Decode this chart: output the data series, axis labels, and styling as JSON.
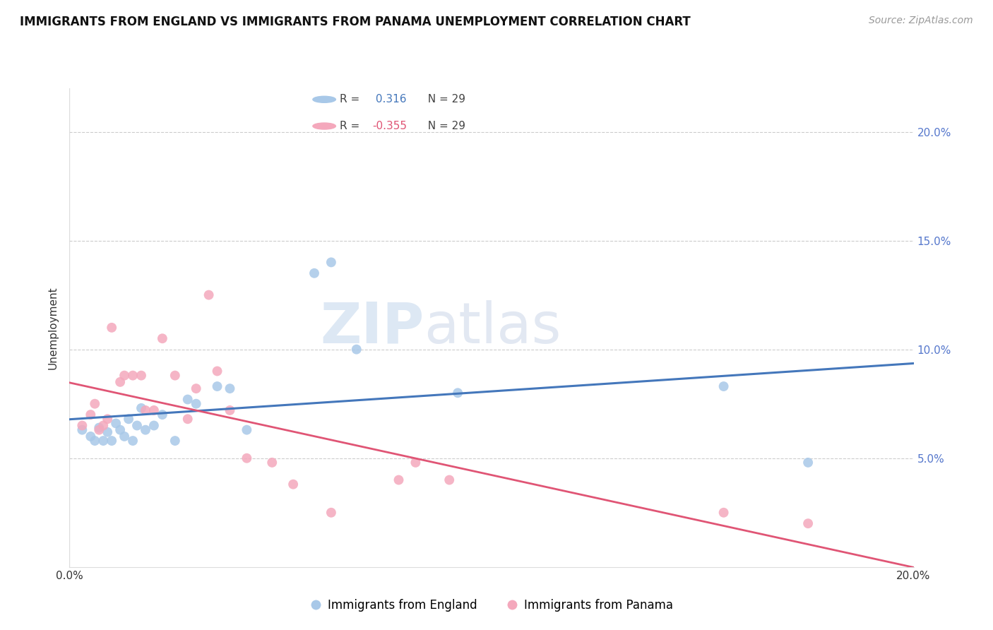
{
  "title": "IMMIGRANTS FROM ENGLAND VS IMMIGRANTS FROM PANAMA UNEMPLOYMENT CORRELATION CHART",
  "source": "Source: ZipAtlas.com",
  "ylabel": "Unemployment",
  "r_england": 0.316,
  "r_panama": -0.355,
  "n_england": 29,
  "n_panama": 29,
  "xlim": [
    0.0,
    0.2
  ],
  "ylim": [
    0.0,
    0.22
  ],
  "yticks": [
    0.05,
    0.1,
    0.15,
    0.2
  ],
  "xticks": [
    0.0,
    0.05,
    0.1,
    0.15,
    0.2
  ],
  "england_color": "#a8c8e8",
  "panama_color": "#f4a8bc",
  "england_line_color": "#4477bb",
  "panama_line_color": "#e05575",
  "england_x": [
    0.003,
    0.005,
    0.006,
    0.007,
    0.008,
    0.009,
    0.01,
    0.011,
    0.012,
    0.013,
    0.014,
    0.015,
    0.016,
    0.017,
    0.018,
    0.02,
    0.022,
    0.025,
    0.028,
    0.03,
    0.035,
    0.038,
    0.042,
    0.058,
    0.062,
    0.068,
    0.092,
    0.155,
    0.175
  ],
  "england_y": [
    0.063,
    0.06,
    0.058,
    0.064,
    0.058,
    0.062,
    0.058,
    0.066,
    0.063,
    0.06,
    0.068,
    0.058,
    0.065,
    0.073,
    0.063,
    0.065,
    0.07,
    0.058,
    0.077,
    0.075,
    0.083,
    0.082,
    0.063,
    0.135,
    0.14,
    0.1,
    0.08,
    0.083,
    0.048
  ],
  "panama_x": [
    0.003,
    0.005,
    0.006,
    0.007,
    0.008,
    0.009,
    0.01,
    0.012,
    0.013,
    0.015,
    0.017,
    0.018,
    0.02,
    0.022,
    0.025,
    0.028,
    0.03,
    0.033,
    0.035,
    0.038,
    0.042,
    0.048,
    0.053,
    0.062,
    0.078,
    0.082,
    0.09,
    0.155,
    0.175
  ],
  "panama_y": [
    0.065,
    0.07,
    0.075,
    0.063,
    0.065,
    0.068,
    0.11,
    0.085,
    0.088,
    0.088,
    0.088,
    0.072,
    0.072,
    0.105,
    0.088,
    0.068,
    0.082,
    0.125,
    0.09,
    0.072,
    0.05,
    0.048,
    0.038,
    0.025,
    0.04,
    0.048,
    0.04,
    0.025,
    0.02
  ]
}
